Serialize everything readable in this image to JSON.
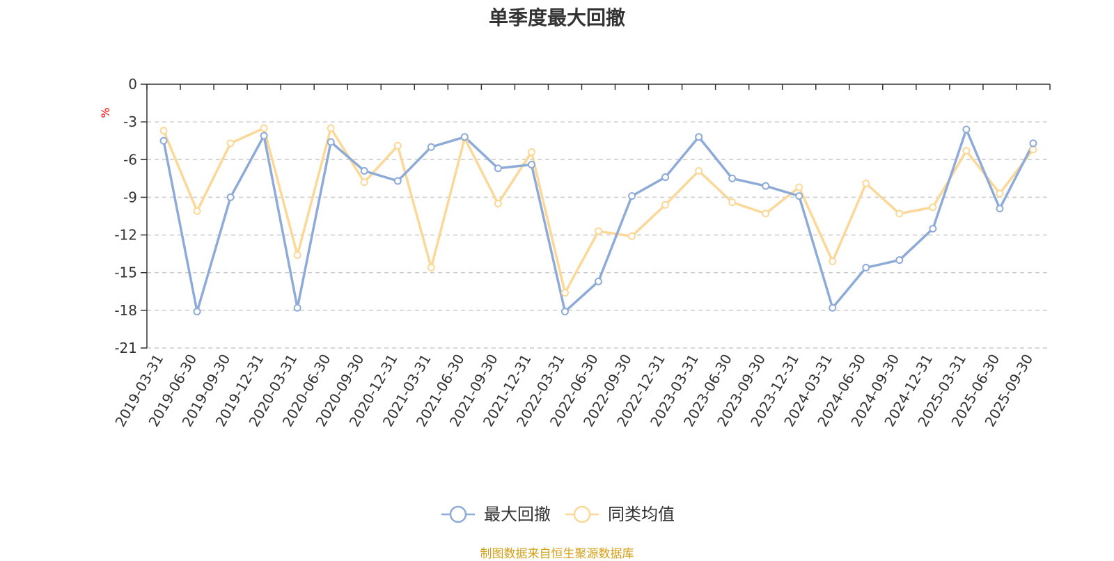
{
  "chart_data": {
    "type": "line",
    "title": "单季度最大回撤",
    "ylabel": "%",
    "ylim": [
      -21,
      0
    ],
    "yticks": [
      0,
      -3,
      -6,
      -9,
      -12,
      -15,
      -18,
      -21
    ],
    "grid": true,
    "legend_position": "bottom",
    "categories": [
      "2019-03-31",
      "2019-06-30",
      "2019-09-30",
      "2019-12-31",
      "2020-03-31",
      "2020-06-30",
      "2020-09-30",
      "2020-12-31",
      "2021-03-31",
      "2021-06-30",
      "2021-09-30",
      "2021-12-31",
      "2022-03-31",
      "2022-06-30",
      "2022-09-30",
      "2022-12-31",
      "2023-03-31",
      "2023-06-30",
      "2023-09-30",
      "2023-12-31",
      "2024-03-31",
      "2024-06-30",
      "2024-09-30",
      "2024-12-31",
      "2025-03-31",
      "2025-06-30",
      "2025-09-30"
    ],
    "series": [
      {
        "name": "最大回撤",
        "color": "#8eabd8",
        "values": [
          -4.5,
          -18.1,
          -9.0,
          -4.1,
          -17.8,
          -4.6,
          -6.9,
          -7.7,
          -5.0,
          -4.2,
          -6.7,
          -6.4,
          -18.1,
          -15.7,
          -8.9,
          -7.4,
          -4.2,
          -7.5,
          -8.1,
          -8.9,
          -17.8,
          -14.6,
          -14.0,
          -11.5,
          -3.6,
          -9.9,
          -4.7
        ]
      },
      {
        "name": "同类均值",
        "color": "#fbd897",
        "values": [
          -3.7,
          -10.1,
          -4.7,
          -3.5,
          -13.6,
          -3.5,
          -7.8,
          -4.9,
          -14.6,
          -4.3,
          -9.5,
          -5.4,
          -16.6,
          -11.7,
          -12.1,
          -9.6,
          -6.9,
          -9.4,
          -10.3,
          -8.2,
          -14.1,
          -7.9,
          -10.3,
          -9.8,
          -5.3,
          -8.7,
          -5.2
        ]
      }
    ]
  },
  "source_note": "制图数据来自恒生聚源数据库"
}
